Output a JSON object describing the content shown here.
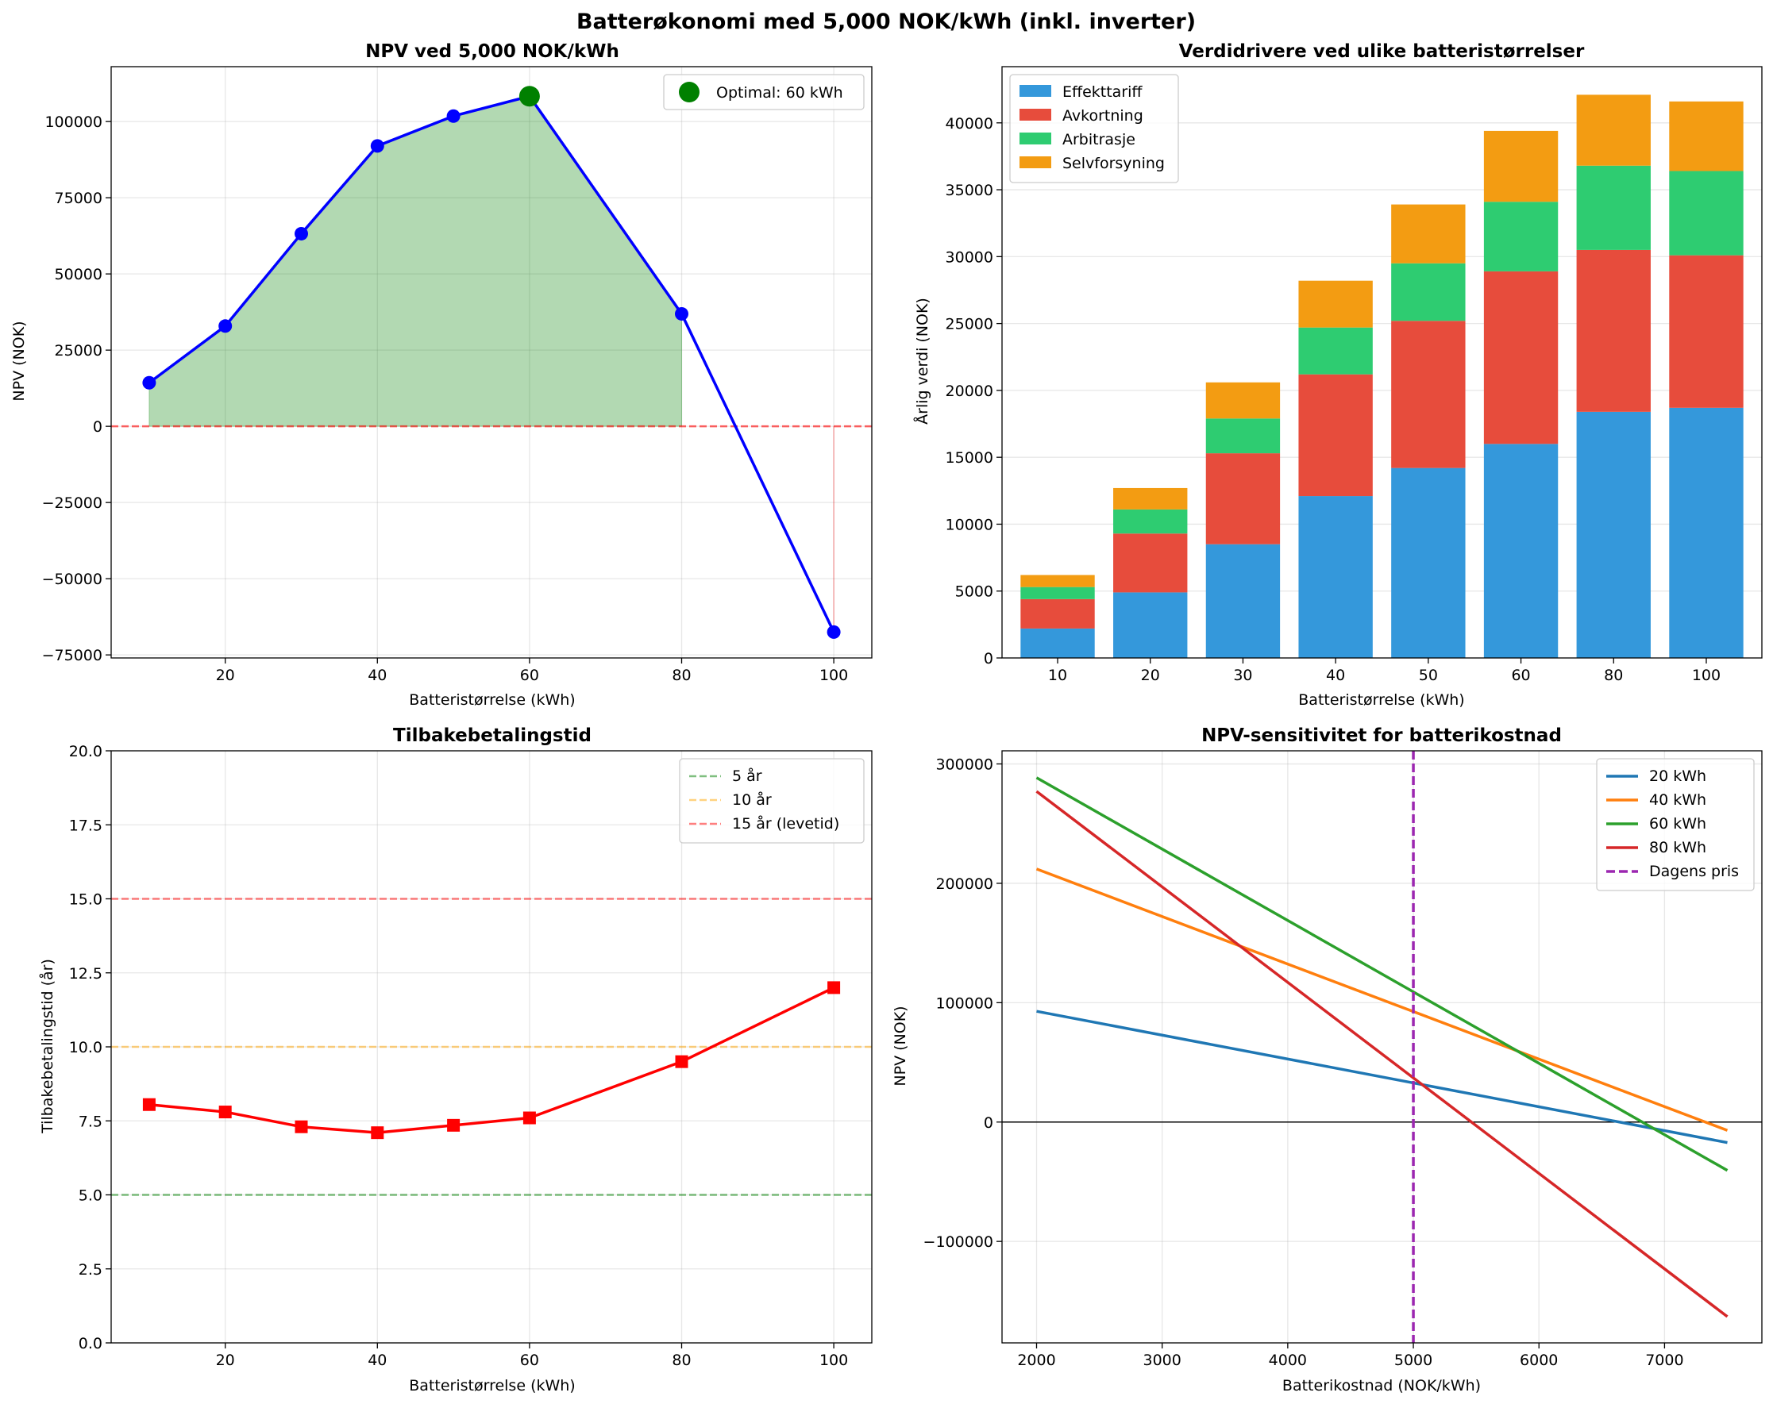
{
  "figure": {
    "suptitle": "Batterøkonomi med 5,000 NOK/kWh (inkl. inverter)"
  },
  "chart_data": [
    {
      "id": "npv",
      "type": "line",
      "title": "NPV ved 5,000 NOK/kWh",
      "xlabel": "Batteristørrelse (kWh)",
      "ylabel": "NPV (NOK)",
      "x": [
        10,
        20,
        30,
        40,
        50,
        60,
        80,
        100
      ],
      "y": [
        14300,
        32900,
        63200,
        92000,
        101800,
        108300,
        36900,
        -67500
      ],
      "xlim": [
        5,
        105
      ],
      "ylim": [
        -76000,
        118000
      ],
      "xticks": [
        20,
        40,
        60,
        80,
        100
      ],
      "yticks": [
        -75000,
        -50000,
        -25000,
        0,
        25000,
        50000,
        75000,
        100000
      ],
      "ytick_labels": [
        "−75000",
        "−50000",
        "−25000",
        "0",
        "25000",
        "50000",
        "75000",
        "100000"
      ],
      "line_color": "#0000ff",
      "fill_positive_color": "#008000",
      "fill_negative_color": "#ff0000",
      "zero_line_color": "#ff0000",
      "optimal": {
        "x": 60,
        "y": 108300,
        "label": "Optimal: 60 kWh",
        "color": "#008000"
      },
      "legend_position": "upper right",
      "grid": true
    },
    {
      "id": "drivers",
      "type": "bar",
      "stacked": true,
      "title": "Verdidrivere ved ulike batteristørrelser",
      "xlabel": "Batteristørrelse (kWh)",
      "ylabel": "Årlig verdi (NOK)",
      "categories": [
        "10",
        "20",
        "30",
        "40",
        "50",
        "60",
        "80",
        "100"
      ],
      "series": [
        {
          "name": "Effekttariff",
          "color": "#3498db",
          "values": [
            2200,
            4900,
            8500,
            12100,
            14200,
            16000,
            18400,
            18700
          ]
        },
        {
          "name": "Avkortning",
          "color": "#e74c3c",
          "values": [
            2200,
            4400,
            6800,
            9100,
            11000,
            12900,
            12100,
            11400
          ]
        },
        {
          "name": "Arbitrasje",
          "color": "#2ecc71",
          "values": [
            900,
            1800,
            2600,
            3500,
            4300,
            5200,
            6300,
            6300
          ]
        },
        {
          "name": "Selvforsyning",
          "color": "#f39c12",
          "values": [
            900,
            1600,
            2700,
            3500,
            4400,
            5300,
            5300,
            5200
          ]
        }
      ],
      "ylim": [
        0,
        44200
      ],
      "yticks": [
        0,
        5000,
        10000,
        15000,
        20000,
        25000,
        30000,
        35000,
        40000
      ],
      "legend_position": "upper left",
      "grid": true
    },
    {
      "id": "payback",
      "type": "line",
      "title": "Tilbakebetalingstid",
      "xlabel": "Batteristørrelse (kWh)",
      "ylabel": "Tilbakebetalingstid (år)",
      "x": [
        10,
        20,
        30,
        40,
        50,
        60,
        80,
        100
      ],
      "y": [
        8.05,
        7.8,
        7.3,
        7.1,
        7.35,
        7.6,
        9.5,
        12.0
      ],
      "xlim": [
        5,
        105
      ],
      "ylim": [
        0,
        20
      ],
      "xticks": [
        20,
        40,
        60,
        80,
        100
      ],
      "yticks": [
        0.0,
        2.5,
        5.0,
        7.5,
        10.0,
        12.5,
        15.0,
        17.5,
        20.0
      ],
      "ytick_labels": [
        "0.0",
        "2.5",
        "5.0",
        "7.5",
        "10.0",
        "12.5",
        "15.0",
        "17.5",
        "20.0"
      ],
      "line_color": "#ff0000",
      "reference_lines": [
        {
          "y": 5,
          "label": "5 år",
          "color": "#008000"
        },
        {
          "y": 10,
          "label": "10 år",
          "color": "#ffa500"
        },
        {
          "y": 15,
          "label": "15 år (levetid)",
          "color": "#ff0000"
        }
      ],
      "legend_position": "upper right",
      "grid": true
    },
    {
      "id": "sensitivity",
      "type": "line",
      "title": "NPV-sensitivitet for batterikostnad",
      "xlabel": "Batterikostnad (NOK/kWh)",
      "ylabel": "NPV (NOK)",
      "x": [
        2000,
        7500
      ],
      "series": [
        {
          "name": "20 kWh",
          "color": "#1f77b4",
          "values": [
            92800,
            -17200
          ]
        },
        {
          "name": "40 kWh",
          "color": "#ff7f0e",
          "values": [
            212000,
            -7000
          ]
        },
        {
          "name": "60 kWh",
          "color": "#2ca02c",
          "values": [
            288500,
            -40500
          ]
        },
        {
          "name": "80 kWh",
          "color": "#d62728",
          "values": [
            277000,
            -163000
          ]
        }
      ],
      "vline": {
        "x": 5000,
        "label": "Dagens pris",
        "color": "#9c27b0"
      },
      "xlim": [
        1725,
        7775
      ],
      "ylim": [
        -185000,
        311000
      ],
      "xticks": [
        2000,
        3000,
        4000,
        5000,
        6000,
        7000
      ],
      "yticks": [
        -100000,
        0,
        100000,
        200000,
        300000
      ],
      "ytick_labels": [
        "−100000",
        "0",
        "100000",
        "200000",
        "300000"
      ],
      "legend_position": "upper right",
      "grid": true
    }
  ]
}
